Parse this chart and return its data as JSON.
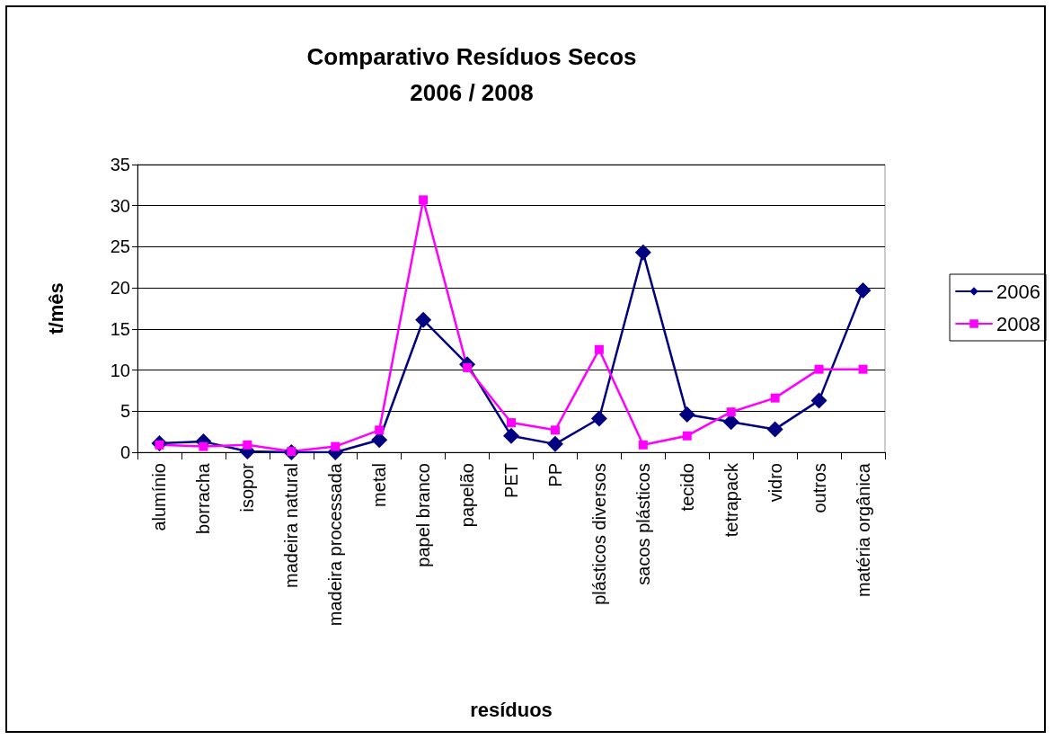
{
  "chart_data": {
    "type": "line",
    "title": "Comparativo Resíduos Secos\n2006 / 2008",
    "xlabel": "resíduos",
    "ylabel": "t/mês",
    "categories": [
      "alumínio",
      "borracha",
      "isopor",
      "madeira natural",
      "madeira processada",
      "metal",
      "papel branco",
      "papelão",
      "PET",
      "PP",
      "plásticos diversos",
      "sacos plásticos",
      "tecido",
      "tetrapack",
      "vidro",
      "outros",
      "matéria orgânica"
    ],
    "series": [
      {
        "name": "2006",
        "color": "#000080",
        "marker": "diamond",
        "values": [
          1.1,
          1.3,
          0.1,
          0,
          0,
          1.5,
          16.1,
          10.7,
          2.0,
          1.0,
          4.1,
          24.3,
          4.6,
          3.7,
          2.8,
          6.3,
          19.7
        ]
      },
      {
        "name": "2008",
        "color": "#ff00ff",
        "marker": "square",
        "values": [
          0.9,
          0.7,
          0.9,
          0.1,
          0.7,
          2.7,
          30.7,
          10.3,
          3.6,
          2.7,
          12.5,
          0.9,
          2.0,
          4.9,
          6.6,
          10.1,
          10.1
        ]
      }
    ],
    "ylim": [
      0,
      35
    ],
    "yticks": [
      0,
      5,
      10,
      15,
      20,
      25,
      30,
      35
    ],
    "grid": "y",
    "legend": "right",
    "line_style": "solid"
  }
}
